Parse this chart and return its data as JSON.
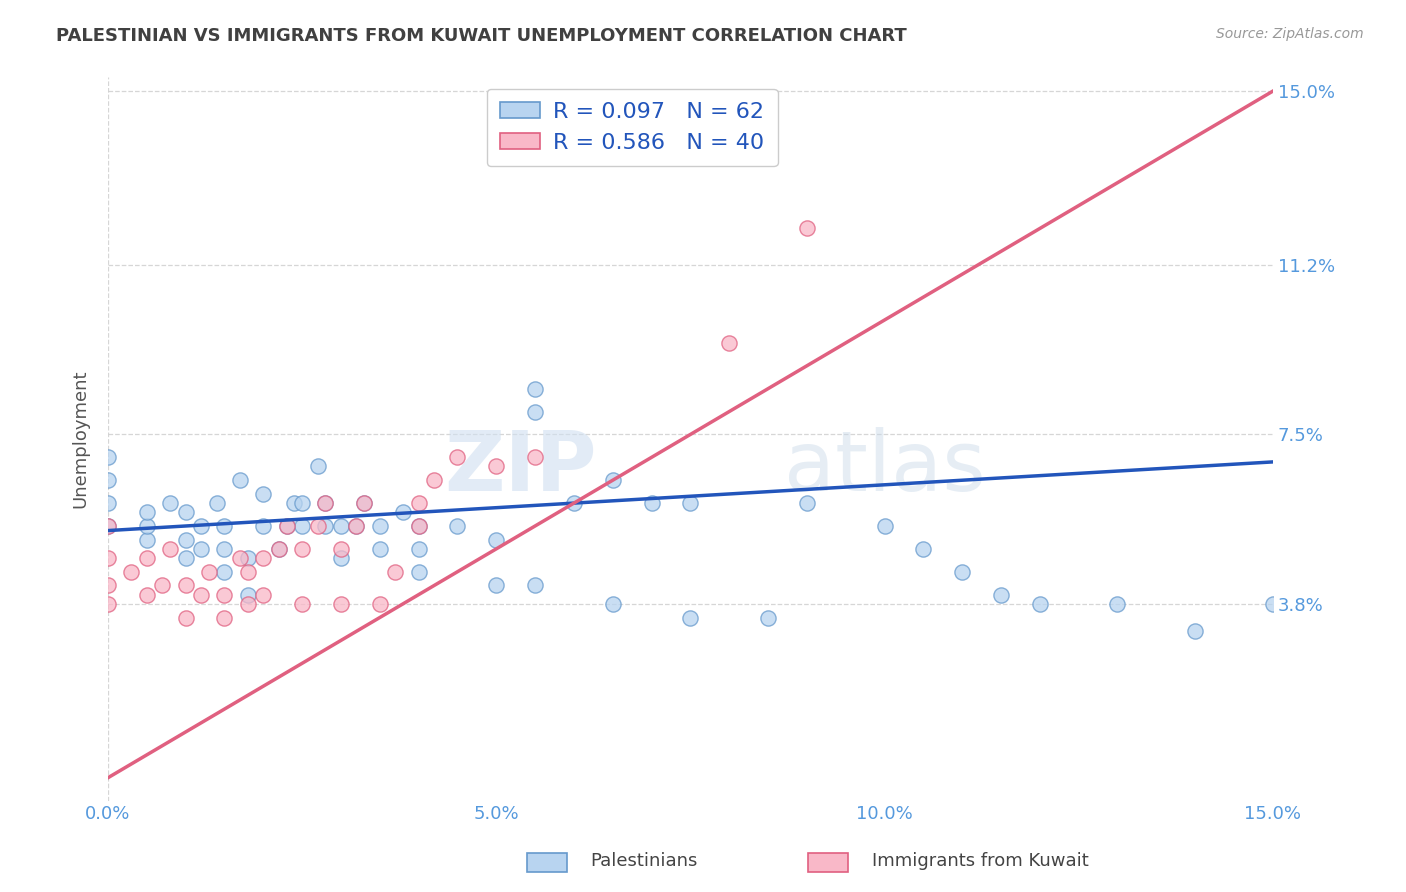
{
  "title": "PALESTINIAN VS IMMIGRANTS FROM KUWAIT UNEMPLOYMENT CORRELATION CHART",
  "source": "Source: ZipAtlas.com",
  "ylabel": "Unemployment",
  "xmin": 0.0,
  "xmax": 0.15,
  "ymin": 0.0,
  "ymax": 0.15,
  "yticks": [
    0.038,
    0.075,
    0.112,
    0.15
  ],
  "ytick_labels": [
    "3.8%",
    "7.5%",
    "11.2%",
    "15.0%"
  ],
  "xticks": [
    0.0,
    0.05,
    0.1,
    0.15
  ],
  "xtick_labels": [
    "0.0%",
    "5.0%",
    "10.0%",
    "15.0%"
  ],
  "hlines": [
    0.038,
    0.075,
    0.112,
    0.15
  ],
  "series1_label": "Palestinians",
  "series1_color": "#b8d4f0",
  "series1_edge": "#6699cc",
  "series1_R": "0.097",
  "series1_N": "62",
  "series2_label": "Immigrants from Kuwait",
  "series2_color": "#f9b8c8",
  "series2_edge": "#e06080",
  "series2_R": "0.586",
  "series2_N": "40",
  "trend1_color": "#2255bb",
  "trend2_color": "#e06080",
  "trend1_x0": 0.0,
  "trend1_y0": 0.054,
  "trend1_x1": 0.15,
  "trend1_y1": 0.069,
  "trend2_x0": 0.0,
  "trend2_y0": 0.0,
  "trend2_x1": 0.15,
  "trend2_y1": 0.15,
  "watermark_zip": "ZIP",
  "watermark_atlas": "atlas",
  "background_color": "#ffffff",
  "title_color": "#404040",
  "axis_color": "#5599dd",
  "legend_R_color": "#2255bb",
  "series1_x": [
    0.0,
    0.0,
    0.0,
    0.0,
    0.005,
    0.005,
    0.005,
    0.008,
    0.01,
    0.01,
    0.01,
    0.012,
    0.012,
    0.014,
    0.015,
    0.015,
    0.015,
    0.017,
    0.018,
    0.018,
    0.02,
    0.02,
    0.022,
    0.023,
    0.024,
    0.025,
    0.025,
    0.027,
    0.028,
    0.028,
    0.03,
    0.03,
    0.032,
    0.033,
    0.035,
    0.035,
    0.038,
    0.04,
    0.04,
    0.04,
    0.045,
    0.05,
    0.055,
    0.055,
    0.06,
    0.065,
    0.07,
    0.075,
    0.09,
    0.1,
    0.105,
    0.11,
    0.115,
    0.12,
    0.13,
    0.14,
    0.15,
    0.05,
    0.055,
    0.065,
    0.075,
    0.085
  ],
  "series1_y": [
    0.055,
    0.06,
    0.065,
    0.07,
    0.052,
    0.055,
    0.058,
    0.06,
    0.048,
    0.052,
    0.058,
    0.05,
    0.055,
    0.06,
    0.045,
    0.05,
    0.055,
    0.065,
    0.04,
    0.048,
    0.055,
    0.062,
    0.05,
    0.055,
    0.06,
    0.055,
    0.06,
    0.068,
    0.055,
    0.06,
    0.048,
    0.055,
    0.055,
    0.06,
    0.05,
    0.055,
    0.058,
    0.045,
    0.05,
    0.055,
    0.055,
    0.052,
    0.08,
    0.085,
    0.06,
    0.065,
    0.06,
    0.06,
    0.06,
    0.055,
    0.05,
    0.045,
    0.04,
    0.038,
    0.038,
    0.032,
    0.038,
    0.042,
    0.042,
    0.038,
    0.035,
    0.035
  ],
  "series2_x": [
    0.0,
    0.0,
    0.0,
    0.0,
    0.003,
    0.005,
    0.005,
    0.007,
    0.008,
    0.01,
    0.01,
    0.012,
    0.013,
    0.015,
    0.015,
    0.017,
    0.018,
    0.018,
    0.02,
    0.02,
    0.022,
    0.023,
    0.025,
    0.025,
    0.027,
    0.028,
    0.03,
    0.03,
    0.032,
    0.033,
    0.035,
    0.037,
    0.04,
    0.04,
    0.042,
    0.045,
    0.05,
    0.055,
    0.08,
    0.09
  ],
  "series2_y": [
    0.038,
    0.042,
    0.048,
    0.055,
    0.045,
    0.04,
    0.048,
    0.042,
    0.05,
    0.035,
    0.042,
    0.04,
    0.045,
    0.035,
    0.04,
    0.048,
    0.038,
    0.045,
    0.04,
    0.048,
    0.05,
    0.055,
    0.038,
    0.05,
    0.055,
    0.06,
    0.038,
    0.05,
    0.055,
    0.06,
    0.038,
    0.045,
    0.055,
    0.06,
    0.065,
    0.07,
    0.068,
    0.07,
    0.095,
    0.12
  ]
}
